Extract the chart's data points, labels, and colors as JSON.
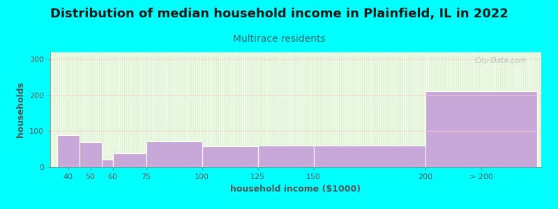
{
  "title": "Distribution of median household income in Plainfield, IL in 2022",
  "subtitle": "Multirace residents",
  "xlabel": "household income ($1000)",
  "ylabel": "households",
  "background_color": "#00FFFF",
  "bar_color": "#c8a8d8",
  "categories": [
    "40",
    "50",
    "60",
    "75",
    "100",
    "125",
    "150",
    "200",
    "> 200"
  ],
  "values": [
    90,
    70,
    22,
    38,
    72,
    58,
    60,
    60,
    212
  ],
  "bar_lefts": [
    35,
    45,
    55,
    60,
    75,
    100,
    125,
    150,
    200
  ],
  "bar_widths": [
    10,
    10,
    5,
    15,
    25,
    25,
    25,
    50,
    50
  ],
  "ylim": [
    0,
    320
  ],
  "yticks": [
    0,
    100,
    200,
    300
  ],
  "xlim_left": 32,
  "xlim_right": 252,
  "xtick_positions": [
    40,
    50,
    60,
    75,
    100,
    125,
    150,
    200,
    225
  ],
  "title_fontsize": 13,
  "subtitle_fontsize": 10,
  "axis_label_fontsize": 9,
  "tick_fontsize": 8,
  "title_color": "#1a1a1a",
  "subtitle_color": "#336666",
  "axis_label_color": "#555555",
  "tick_color": "#555555",
  "watermark": "City-Data.com",
  "grad_top": "#f8fff8",
  "grad_bottom": "#d8efc8"
}
